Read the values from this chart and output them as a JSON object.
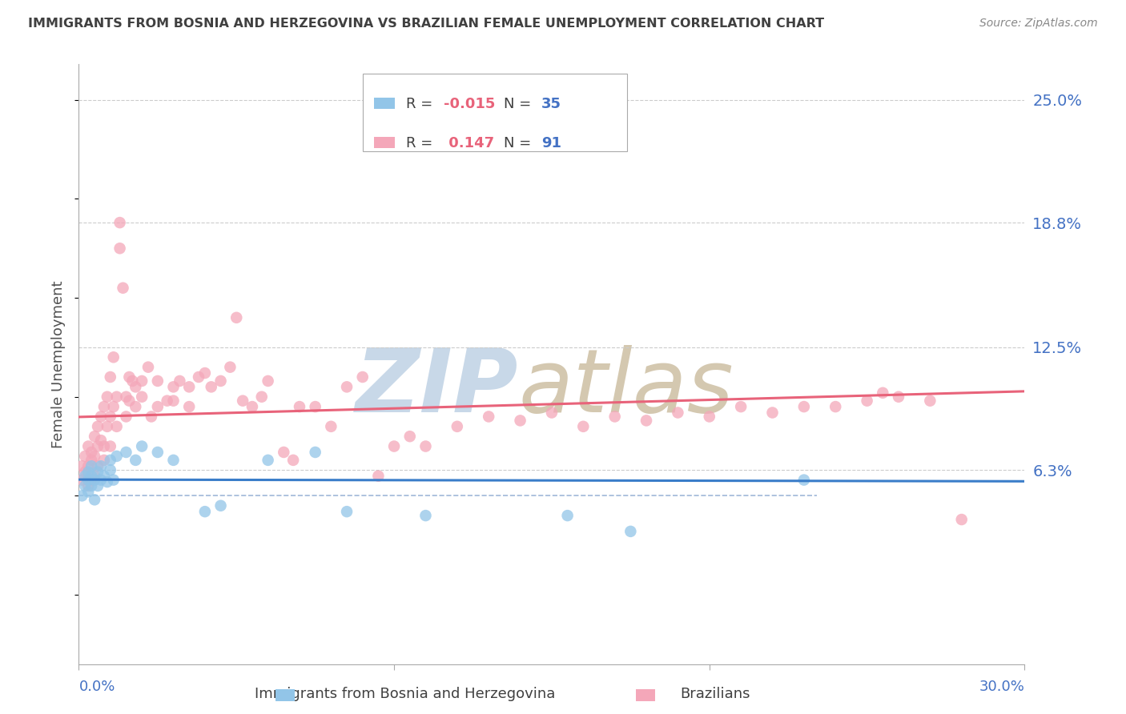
{
  "title": "IMMIGRANTS FROM BOSNIA AND HERZEGOVINA VS BRAZILIAN FEMALE UNEMPLOYMENT CORRELATION CHART",
  "source": "Source: ZipAtlas.com",
  "ylabel": "Female Unemployment",
  "ytick_values": [
    0.063,
    0.125,
    0.188,
    0.25
  ],
  "ytick_labels": [
    "6.3%",
    "12.5%",
    "18.8%",
    "25.0%"
  ],
  "xmin": 0.0,
  "xmax": 0.3,
  "ymin": -0.035,
  "ymax": 0.268,
  "series1_name": "Immigrants from Bosnia and Herzegovina",
  "series1_color": "#92C5E8",
  "series1_R": -0.015,
  "series1_N": 35,
  "series2_name": "Brazilians",
  "series2_color": "#F4A7B9",
  "series2_R": 0.147,
  "series2_N": 91,
  "line1_color": "#3A7DC9",
  "line2_color": "#E8637A",
  "dashed_line_color": "#A0B8D8",
  "watermark_zip_color": "#C8D8E8",
  "watermark_atlas_color": "#D4C8B0",
  "background_color": "#ffffff",
  "grid_color": "#CCCCCC",
  "axis_label_color": "#4472C4",
  "title_color": "#404040",
  "source_color": "#888888",
  "legend_text_color": "#404040",
  "legend_R_color": "#E8637A",
  "legend_N_color": "#4472C4",
  "series1_x": [
    0.001,
    0.002,
    0.002,
    0.003,
    0.003,
    0.003,
    0.004,
    0.004,
    0.004,
    0.005,
    0.005,
    0.006,
    0.006,
    0.007,
    0.007,
    0.008,
    0.009,
    0.01,
    0.01,
    0.011,
    0.012,
    0.015,
    0.018,
    0.02,
    0.025,
    0.03,
    0.04,
    0.045,
    0.06,
    0.075,
    0.085,
    0.11,
    0.155,
    0.175,
    0.23
  ],
  "series1_y": [
    0.05,
    0.055,
    0.06,
    0.052,
    0.058,
    0.062,
    0.055,
    0.06,
    0.065,
    0.048,
    0.058,
    0.055,
    0.062,
    0.058,
    0.065,
    0.06,
    0.057,
    0.063,
    0.068,
    0.058,
    0.07,
    0.072,
    0.068,
    0.075,
    0.072,
    0.068,
    0.042,
    0.045,
    0.068,
    0.072,
    0.042,
    0.04,
    0.04,
    0.032,
    0.058
  ],
  "series2_x": [
    0.001,
    0.001,
    0.002,
    0.002,
    0.003,
    0.003,
    0.003,
    0.004,
    0.004,
    0.004,
    0.005,
    0.005,
    0.005,
    0.006,
    0.006,
    0.006,
    0.007,
    0.007,
    0.008,
    0.008,
    0.008,
    0.009,
    0.009,
    0.01,
    0.01,
    0.01,
    0.011,
    0.011,
    0.012,
    0.012,
    0.013,
    0.013,
    0.014,
    0.015,
    0.015,
    0.016,
    0.016,
    0.017,
    0.018,
    0.018,
    0.02,
    0.02,
    0.022,
    0.023,
    0.025,
    0.025,
    0.028,
    0.03,
    0.03,
    0.032,
    0.035,
    0.035,
    0.038,
    0.04,
    0.042,
    0.045,
    0.048,
    0.05,
    0.052,
    0.055,
    0.058,
    0.06,
    0.065,
    0.068,
    0.07,
    0.075,
    0.08,
    0.085,
    0.09,
    0.095,
    0.1,
    0.105,
    0.11,
    0.12,
    0.13,
    0.14,
    0.15,
    0.16,
    0.17,
    0.18,
    0.19,
    0.2,
    0.21,
    0.22,
    0.23,
    0.24,
    0.25,
    0.255,
    0.26,
    0.27,
    0.28
  ],
  "series2_y": [
    0.058,
    0.065,
    0.062,
    0.07,
    0.055,
    0.065,
    0.075,
    0.058,
    0.068,
    0.072,
    0.06,
    0.07,
    0.08,
    0.065,
    0.075,
    0.085,
    0.078,
    0.09,
    0.068,
    0.075,
    0.095,
    0.085,
    0.1,
    0.075,
    0.09,
    0.11,
    0.12,
    0.095,
    0.085,
    0.1,
    0.175,
    0.188,
    0.155,
    0.09,
    0.1,
    0.11,
    0.098,
    0.108,
    0.095,
    0.105,
    0.1,
    0.108,
    0.115,
    0.09,
    0.095,
    0.108,
    0.098,
    0.105,
    0.098,
    0.108,
    0.095,
    0.105,
    0.11,
    0.112,
    0.105,
    0.108,
    0.115,
    0.14,
    0.098,
    0.095,
    0.1,
    0.108,
    0.072,
    0.068,
    0.095,
    0.095,
    0.085,
    0.105,
    0.11,
    0.06,
    0.075,
    0.08,
    0.075,
    0.085,
    0.09,
    0.088,
    0.092,
    0.085,
    0.09,
    0.088,
    0.092,
    0.09,
    0.095,
    0.092,
    0.095,
    0.095,
    0.098,
    0.102,
    0.1,
    0.098,
    0.038
  ]
}
